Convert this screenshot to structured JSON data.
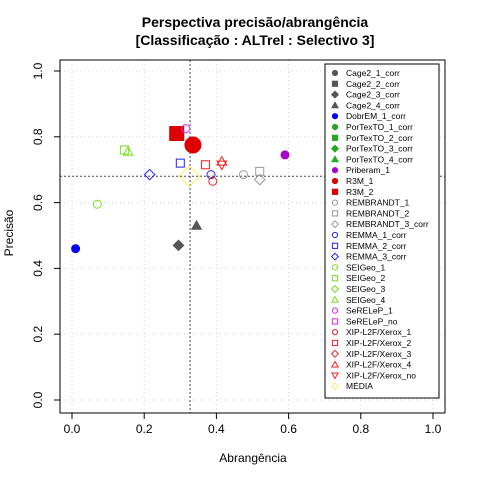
{
  "chart_data": {
    "type": "scatter",
    "title": "Perspectiva precisão/abrangência",
    "subtitle": "[Classificação : ALTrel : Selectivo 3]",
    "xlabel": "Abrangência",
    "ylabel": "Precisão",
    "xlim": [
      0,
      1
    ],
    "ylim": [
      0,
      1
    ],
    "xticks": [
      "0.0",
      "0.2",
      "0.4",
      "0.6",
      "0.8",
      "1.0"
    ],
    "yticks": [
      "0.0",
      "0.2",
      "0.4",
      "0.6",
      "0.8",
      "1.0"
    ],
    "grid": true,
    "legend_position": "right",
    "reference_lines": {
      "x": 0.327,
      "y": 0.68
    },
    "series": [
      {
        "name": "Cage2_1_corr",
        "shape": "circle",
        "fill": true,
        "color": "#555555",
        "points": []
      },
      {
        "name": "Cage2_2_corr",
        "shape": "square",
        "fill": true,
        "color": "#555555",
        "points": []
      },
      {
        "name": "Cage2_3_corr",
        "shape": "diamond",
        "fill": true,
        "color": "#555555",
        "points": [
          [
            0.295,
            0.47
          ]
        ]
      },
      {
        "name": "Cage2_4_corr",
        "shape": "triangle",
        "fill": true,
        "color": "#555555",
        "points": [
          [
            0.345,
            0.53
          ]
        ]
      },
      {
        "name": "DobrEM_1_corr",
        "shape": "circle",
        "fill": true,
        "color": "#0000ee",
        "points": [
          [
            0.01,
            0.46
          ]
        ]
      },
      {
        "name": "PorTexTO_1_corr",
        "shape": "circle",
        "fill": true,
        "color": "#22aa22",
        "points": []
      },
      {
        "name": "PorTexTO_2_corr",
        "shape": "square",
        "fill": true,
        "color": "#22aa22",
        "points": []
      },
      {
        "name": "PorTexTO_3_corr",
        "shape": "diamond",
        "fill": true,
        "color": "#22aa22",
        "points": []
      },
      {
        "name": "PorTexTO_4_corr",
        "shape": "triangle",
        "fill": true,
        "color": "#22aa22",
        "points": []
      },
      {
        "name": "Priberam_1",
        "shape": "circle",
        "fill": true,
        "color": "#aa00cc",
        "points": [
          [
            0.59,
            0.745
          ]
        ]
      },
      {
        "name": "R3M_1",
        "shape": "circle",
        "fill": true,
        "color": "#dd0000",
        "points": [
          [
            0.335,
            0.775
          ]
        ]
      },
      {
        "name": "R3M_2",
        "shape": "square",
        "fill": true,
        "color": "#dd0000",
        "points": [
          [
            0.29,
            0.81
          ]
        ]
      },
      {
        "name": "REMBRANDT_1",
        "shape": "circle",
        "fill": false,
        "color": "#999999",
        "points": [
          [
            0.475,
            0.685
          ]
        ]
      },
      {
        "name": "REMBRANDT_2",
        "shape": "square",
        "fill": false,
        "color": "#999999",
        "points": [
          [
            0.52,
            0.695
          ]
        ]
      },
      {
        "name": "REMBRANDT_3_corr",
        "shape": "diamond",
        "fill": false,
        "color": "#999999",
        "points": [
          [
            0.52,
            0.67
          ]
        ]
      },
      {
        "name": "REMMA_1_corr",
        "shape": "circle",
        "fill": false,
        "color": "#2222ee",
        "points": [
          [
            0.385,
            0.685
          ]
        ]
      },
      {
        "name": "REMMA_2_corr",
        "shape": "square",
        "fill": false,
        "color": "#2222ee",
        "points": [
          [
            0.3,
            0.72
          ]
        ]
      },
      {
        "name": "REMMA_3_corr",
        "shape": "diamond",
        "fill": false,
        "color": "#2222ee",
        "points": [
          [
            0.215,
            0.685
          ]
        ]
      },
      {
        "name": "SEIGeo_1",
        "shape": "circle",
        "fill": false,
        "color": "#77dd22",
        "points": [
          [
            0.07,
            0.595
          ]
        ]
      },
      {
        "name": "SEIGeo_2",
        "shape": "square",
        "fill": false,
        "color": "#77dd22",
        "points": [
          [
            0.145,
            0.76
          ]
        ]
      },
      {
        "name": "SEIGeo_3",
        "shape": "diamond",
        "fill": false,
        "color": "#77dd22",
        "points": []
      },
      {
        "name": "SEIGeo_4",
        "shape": "triangle",
        "fill": false,
        "color": "#77dd22",
        "points": [
          [
            0.155,
            0.755
          ]
        ]
      },
      {
        "name": "SeRELeP_1",
        "shape": "circle",
        "fill": false,
        "color": "#ee22ee",
        "points": [
          [
            0.315,
            0.825
          ]
        ]
      },
      {
        "name": "SeRELeP_no",
        "shape": "square",
        "fill": false,
        "color": "#ee22ee",
        "points": []
      },
      {
        "name": "XIP-L2F/Xerox_1",
        "shape": "circle",
        "fill": false,
        "color": "#ee2222",
        "points": [
          [
            0.39,
            0.665
          ]
        ]
      },
      {
        "name": "XIP-L2F/Xerox_2",
        "shape": "square",
        "fill": false,
        "color": "#ee2222",
        "points": [
          [
            0.37,
            0.715
          ]
        ]
      },
      {
        "name": "XIP-L2F/Xerox_3",
        "shape": "diamond",
        "fill": false,
        "color": "#ee2222",
        "points": []
      },
      {
        "name": "XIP-L2F/Xerox_4",
        "shape": "triangle",
        "fill": false,
        "color": "#ee2222",
        "points": [
          [
            0.415,
            0.725
          ]
        ]
      },
      {
        "name": "XIP-L2F/Xerox_no",
        "shape": "triangle-down",
        "fill": false,
        "color": "#ee2222",
        "points": [
          [
            0.415,
            0.715
          ]
        ]
      },
      {
        "name": "MÉDIA",
        "shape": "diamond",
        "fill": false,
        "color": "#ffee66",
        "points": [
          [
            0.325,
            0.68
          ]
        ]
      }
    ]
  }
}
